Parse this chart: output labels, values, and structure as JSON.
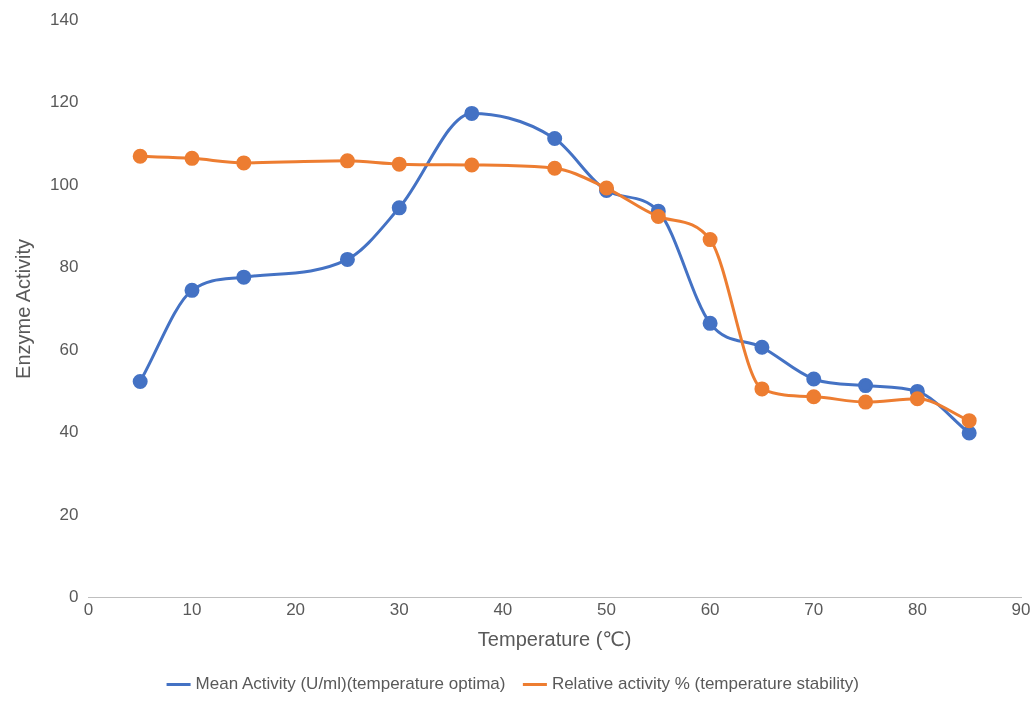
{
  "chart_data": {
    "type": "line",
    "xlabel": "Temperature (℃)",
    "ylabel": "Enzyme Activity",
    "x": [
      5,
      10,
      15,
      25,
      30,
      37,
      45,
      50,
      55,
      60,
      65,
      70,
      75,
      80,
      85
    ],
    "series": [
      {
        "name": "Mean Activity (U/ml)(temperature optima)",
        "color": "#4472c4",
        "values": [
          52.4,
          74.5,
          77.7,
          82,
          94.5,
          117.4,
          111.3,
          98.7,
          93.7,
          66.5,
          60.7,
          53,
          51.4,
          50,
          39.9
        ]
      },
      {
        "name": "Relative activity % (temperature stability)",
        "color": "#ed7d31",
        "values": [
          107,
          106.5,
          105.4,
          105.9,
          105.1,
          104.9,
          104.1,
          99.3,
          92.4,
          86.8,
          50.6,
          48.7,
          47.4,
          48.2,
          42.9
        ]
      }
    ],
    "xlim": [
      0,
      90
    ],
    "xticks": [
      0,
      10,
      20,
      30,
      40,
      50,
      60,
      70,
      80,
      90
    ],
    "ylim": [
      0,
      140
    ],
    "yticks": [
      0,
      20,
      40,
      60,
      80,
      100,
      120,
      140
    ],
    "grid": false,
    "legend": "bottom",
    "marker": "circle",
    "line_style": "solid"
  }
}
